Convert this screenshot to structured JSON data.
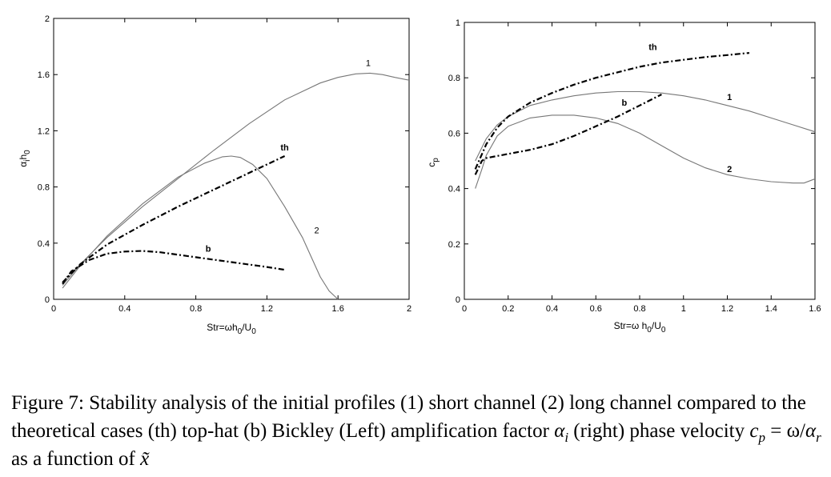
{
  "chart_data": [
    {
      "type": "line",
      "ylabel_main": "α",
      "ylabel_sub1": "i",
      "ylabel_mid": "h",
      "ylabel_sub2": "0",
      "xlabel_main": "Str=ωh",
      "xlabel_sub1": "0",
      "xlabel_mid": "/U",
      "xlabel_sub2": "0",
      "xlim": [
        0,
        2
      ],
      "ylim": [
        0,
        2
      ],
      "xticks": [
        0,
        0.4,
        0.8,
        1.2,
        1.6,
        2
      ],
      "xtick_labels": [
        "0",
        "0.4",
        "0.8",
        "1.2",
        "1.6",
        "2"
      ],
      "yticks": [
        0,
        0.4,
        0.8,
        1.2,
        1.6,
        2
      ],
      "ytick_labels": [
        "0",
        "0.4",
        "0.8",
        "1.2",
        "1.6",
        "2"
      ],
      "grid": false,
      "series": [
        {
          "name": "1",
          "style": "solid",
          "x": [
            0.05,
            0.15,
            0.3,
            0.5,
            0.7,
            0.9,
            1.1,
            1.3,
            1.5,
            1.6,
            1.7,
            1.78,
            1.85,
            1.92,
            2.0
          ],
          "y": [
            0.1,
            0.25,
            0.44,
            0.66,
            0.86,
            1.06,
            1.25,
            1.42,
            1.54,
            1.58,
            1.605,
            1.61,
            1.6,
            1.58,
            1.56
          ]
        },
        {
          "name": "2",
          "style": "solid",
          "x": [
            0.05,
            0.15,
            0.3,
            0.5,
            0.7,
            0.85,
            0.95,
            1.0,
            1.05,
            1.12,
            1.2,
            1.3,
            1.4,
            1.5,
            1.55,
            1.6
          ],
          "y": [
            0.08,
            0.24,
            0.45,
            0.68,
            0.87,
            0.97,
            1.015,
            1.02,
            1.01,
            0.96,
            0.86,
            0.66,
            0.44,
            0.16,
            0.06,
            0.0
          ]
        },
        {
          "name": "th",
          "style": "dashdot",
          "x": [
            0.05,
            0.15,
            0.3,
            0.5,
            0.7,
            0.9,
            1.1,
            1.3
          ],
          "y": [
            0.12,
            0.25,
            0.39,
            0.53,
            0.66,
            0.78,
            0.9,
            1.02
          ]
        },
        {
          "name": "b",
          "style": "dashdot",
          "x": [
            0.05,
            0.1,
            0.2,
            0.3,
            0.4,
            0.5,
            0.6,
            0.8,
            1.0,
            1.2,
            1.3
          ],
          "y": [
            0.11,
            0.2,
            0.28,
            0.325,
            0.34,
            0.345,
            0.335,
            0.3,
            0.265,
            0.23,
            0.21
          ]
        }
      ]
    },
    {
      "type": "line",
      "ylabel_main": "c",
      "ylabel_sub1": "p",
      "xlabel_main": "Str=ω h",
      "xlabel_sub1": "0",
      "xlabel_mid": "/U",
      "xlabel_sub2": "0",
      "xlim": [
        0,
        1.6
      ],
      "ylim": [
        0,
        1
      ],
      "xticks": [
        0,
        0.2,
        0.4,
        0.6,
        0.8,
        1,
        1.2,
        1.4,
        1.6
      ],
      "xtick_labels": [
        "0",
        "0.2",
        "0.4",
        "0.6",
        "0.8",
        "1",
        "1.2",
        "1.4",
        "1.6"
      ],
      "yticks": [
        0,
        0.2,
        0.4,
        0.6,
        0.8,
        1
      ],
      "ytick_labels": [
        "0",
        "0.2",
        "0.4",
        "0.6",
        "0.8",
        "1"
      ],
      "grid": false,
      "series": [
        {
          "name": "1",
          "style": "solid",
          "x": [
            0.05,
            0.1,
            0.15,
            0.2,
            0.3,
            0.4,
            0.5,
            0.6,
            0.7,
            0.8,
            0.9,
            1.0,
            1.1,
            1.2,
            1.3,
            1.4,
            1.5,
            1.6
          ],
          "y": [
            0.5,
            0.58,
            0.63,
            0.66,
            0.7,
            0.72,
            0.735,
            0.745,
            0.75,
            0.75,
            0.745,
            0.735,
            0.72,
            0.7,
            0.68,
            0.655,
            0.63,
            0.605
          ]
        },
        {
          "name": "2",
          "style": "solid",
          "x": [
            0.05,
            0.08,
            0.1,
            0.15,
            0.2,
            0.3,
            0.4,
            0.5,
            0.6,
            0.7,
            0.8,
            0.9,
            1.0,
            1.1,
            1.2,
            1.3,
            1.4,
            1.5,
            1.55,
            1.6
          ],
          "y": [
            0.4,
            0.47,
            0.52,
            0.59,
            0.625,
            0.655,
            0.665,
            0.665,
            0.655,
            0.635,
            0.6,
            0.555,
            0.51,
            0.475,
            0.45,
            0.435,
            0.425,
            0.42,
            0.42,
            0.435
          ]
        },
        {
          "name": "th",
          "style": "dashdot",
          "x": [
            0.05,
            0.1,
            0.15,
            0.2,
            0.3,
            0.4,
            0.5,
            0.6,
            0.7,
            0.8,
            0.9,
            1.0,
            1.1,
            1.2,
            1.3
          ],
          "y": [
            0.47,
            0.56,
            0.62,
            0.66,
            0.71,
            0.745,
            0.775,
            0.8,
            0.82,
            0.84,
            0.855,
            0.865,
            0.875,
            0.882,
            0.89
          ]
        },
        {
          "name": "b",
          "style": "dashdot",
          "x": [
            0.05,
            0.08,
            0.1,
            0.2,
            0.3,
            0.4,
            0.5,
            0.6,
            0.7,
            0.8,
            0.9
          ],
          "y": [
            0.45,
            0.5,
            0.51,
            0.525,
            0.54,
            0.56,
            0.59,
            0.625,
            0.66,
            0.7,
            0.74
          ]
        }
      ]
    }
  ],
  "caption": {
    "part1": "Figure 7:  Stability analysis of the initial profiles (1) short channel (2) long channel compared to the theoretical cases (th) top-hat (b) Bickley (Left) amplification factor ",
    "alpha": "α",
    "alpha_sub": "i",
    "part2": " (right) phase velocity ",
    "cp": "c",
    "cp_sub": "p",
    "eq": " = ω/",
    "alpha2": "α",
    "alpha2_sub": "r",
    "part3": " as a function of ",
    "xtilde": "x̃"
  }
}
